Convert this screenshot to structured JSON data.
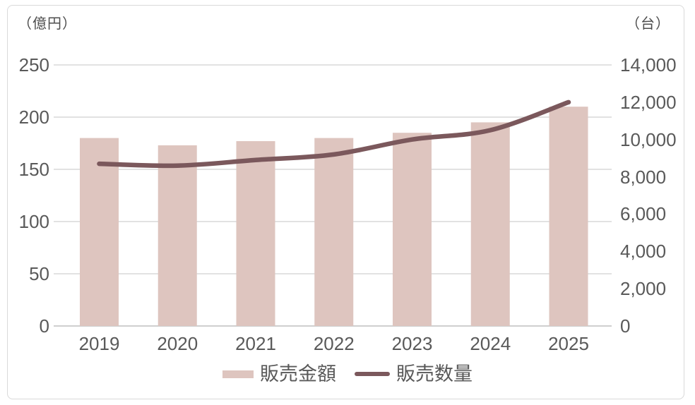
{
  "chart_data": {
    "type": "combo",
    "title": "",
    "categories": [
      "2019",
      "2020",
      "2021",
      "2022",
      "2023",
      "2024",
      "2025"
    ],
    "series": [
      {
        "name": "販売金額",
        "type": "bar",
        "axis": "left",
        "unit": "億円",
        "color": "#dec5bf",
        "values": [
          180,
          173,
          177,
          180,
          185,
          195,
          210
        ]
      },
      {
        "name": "販売数量",
        "type": "line",
        "axis": "right",
        "unit": "台",
        "color": "#7b585c",
        "values": [
          8700,
          8600,
          8900,
          9200,
          10000,
          10500,
          12000
        ]
      }
    ],
    "left_axis": {
      "title": "（億円）",
      "min": 0,
      "max": 250,
      "step": 50,
      "ticks": [
        "250",
        "200",
        "150",
        "100",
        "50",
        "0"
      ]
    },
    "right_axis": {
      "title": "（台）",
      "min": 0,
      "max": 14000,
      "step": 2000,
      "ticks": [
        "14,000",
        "12,000",
        "10,000",
        "8,000",
        "6,000",
        "4,000",
        "2,000",
        "0"
      ]
    },
    "grid": true,
    "legend_position": "bottom",
    "colors": {
      "gridline": "#d9d9d9",
      "axis_line": "#cfcfcf",
      "tick_text": "#595959",
      "unit_text": "#4d4d4d",
      "background": "#ffffff"
    }
  }
}
